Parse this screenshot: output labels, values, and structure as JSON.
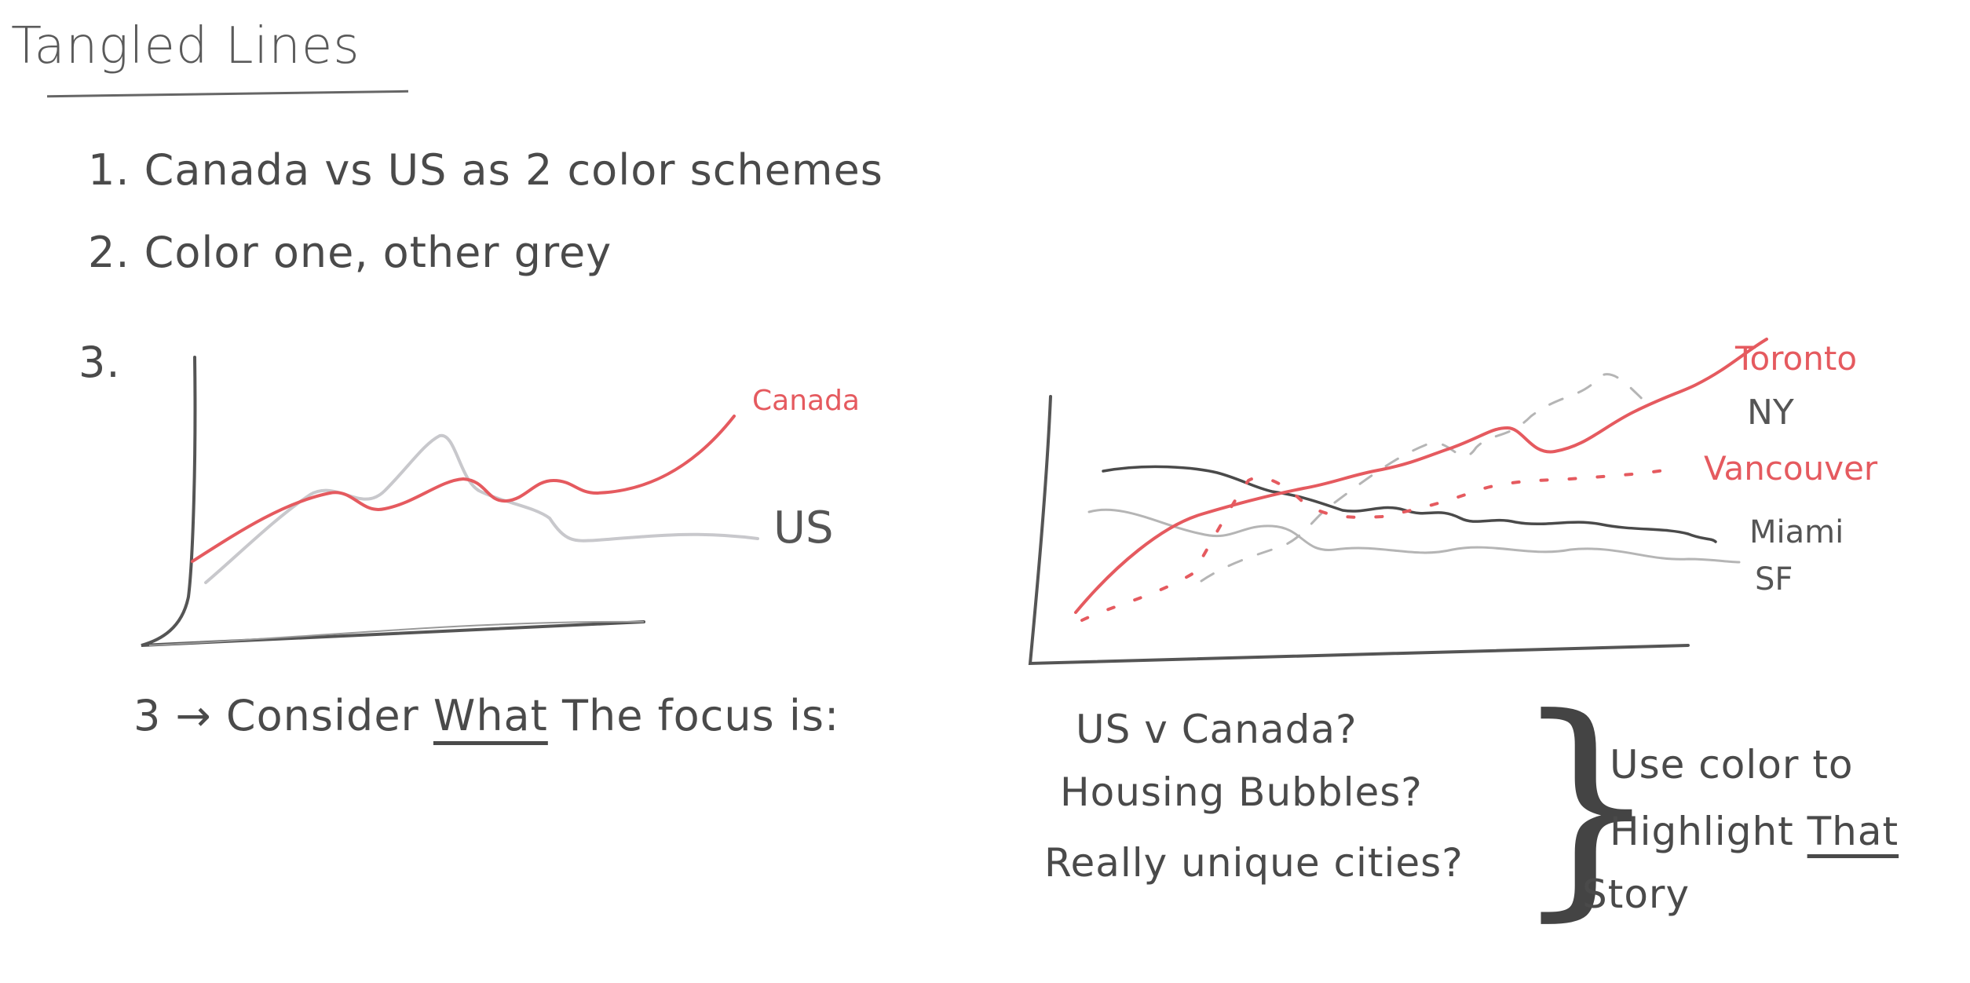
{
  "title": "Tangled Lines",
  "notes": {
    "item1": "1. Canada vs US as 2 color schemes",
    "item2": "2. Color one, other grey",
    "item3": "3."
  },
  "chart_left": {
    "series_red": "Canada",
    "series_grey": "US",
    "colors": {
      "highlight": "#e55a5f",
      "muted": "#c8c8cc",
      "axis": "#555555"
    }
  },
  "chart_right": {
    "labels": {
      "toronto": "Toronto",
      "ny": "NY",
      "vancouver": "Vancouver",
      "miami": "Miami",
      "sf": "SF"
    },
    "colors": {
      "highlight": "#e55a5f",
      "dark": "#4a4a4a",
      "light": "#b5b5b5"
    }
  },
  "consider": {
    "prefix": "3 → Consider",
    "emphasis": "What",
    "suffix": "The focus is:"
  },
  "questions": [
    "US v Canada?",
    "Housing Bubbles?",
    "Really unique cities?"
  ],
  "conclusion": {
    "line1": "Use color to",
    "line2_a": "Highlight",
    "line2_b": "That",
    "line3": "Story"
  }
}
